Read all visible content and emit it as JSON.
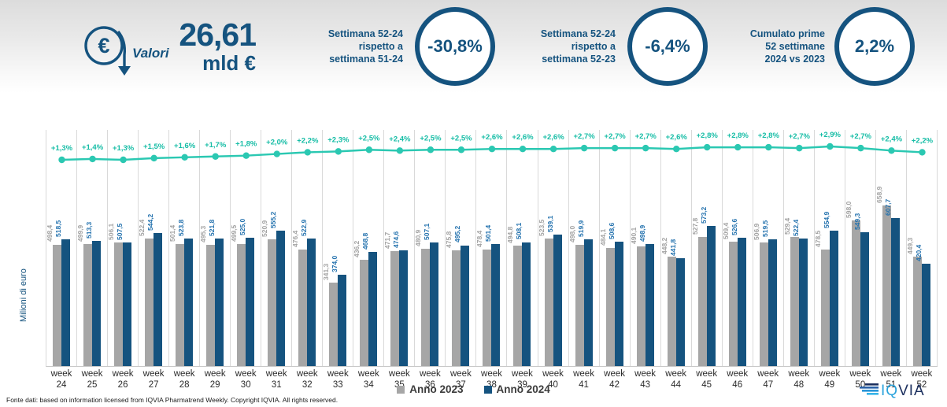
{
  "header": {
    "valori_label": "Valori",
    "total_value": "26,61",
    "total_unit": "mld €",
    "accent_color": "#15537f",
    "kpis": [
      {
        "lines": [
          "Settimana 52-24",
          "rispetto a",
          "settimana 51-24"
        ],
        "value": "-30,8%"
      },
      {
        "lines": [
          "Settimana 52-24",
          "rispetto a",
          "settimana 52-23"
        ],
        "value": "-6,4%"
      },
      {
        "lines": [
          "Cumulato prime",
          "52 settimane",
          "2024 vs 2023"
        ],
        "value": "2,2%"
      }
    ]
  },
  "chart_data": {
    "type": "bar",
    "ylabel": "Milioni di euro",
    "x_prefix": "week",
    "categories": [
      "24",
      "25",
      "26",
      "27",
      "28",
      "29",
      "30",
      "31",
      "32",
      "33",
      "34",
      "35",
      "36",
      "37",
      "38",
      "39",
      "40",
      "41",
      "42",
      "43",
      "44",
      "45",
      "46",
      "47",
      "48",
      "49",
      "50",
      "51",
      "52"
    ],
    "series": [
      {
        "name": "Anno 2023",
        "color": "#a6a6a6",
        "label_color": "#a3a3a3",
        "values": [
          498.4,
          499.9,
          506.1,
          522.4,
          501.4,
          495.3,
          499.5,
          520.9,
          476.4,
          341.3,
          436.2,
          471.7,
          480.9,
          475.8,
          478.4,
          494.8,
          523.5,
          498.0,
          484.1,
          490.1,
          448.2,
          527.8,
          509.4,
          506.9,
          529.4,
          478.5,
          598.0,
          658.9,
          449.3
        ]
      },
      {
        "name": "Anno 2024",
        "color": "#15537f",
        "label_color": "#2472ae",
        "values": [
          518.5,
          513.3,
          507.5,
          544.2,
          523.8,
          521.8,
          525.0,
          555.2,
          522.9,
          374.0,
          468.8,
          474.6,
          507.1,
          495.2,
          501.4,
          508.1,
          539.1,
          519.9,
          508.6,
          498.9,
          441.8,
          573.2,
          526.6,
          519.5,
          522.4,
          554.9,
          549.3,
          607.7,
          420.4
        ]
      }
    ],
    "line_overlay": {
      "name": "Variazione % cumulata",
      "color": "#2bc8b2",
      "label_color": "#16bda6",
      "values_pct": [
        1.3,
        1.4,
        1.3,
        1.5,
        1.6,
        1.7,
        1.8,
        2.0,
        2.2,
        2.3,
        2.5,
        2.4,
        2.5,
        2.5,
        2.6,
        2.6,
        2.6,
        2.7,
        2.7,
        2.7,
        2.6,
        2.8,
        2.8,
        2.8,
        2.7,
        2.9,
        2.7,
        2.4,
        2.2
      ],
      "labels": [
        "+1,3%",
        "+1,4%",
        "+1,3%",
        "+1,5%",
        "+1,6%",
        "+1,7%",
        "+1,8%",
        "+2,0%",
        "+2,2%",
        "+2,3%",
        "+2,5%",
        "+2,4%",
        "+2,5%",
        "+2,5%",
        "+2,6%",
        "+2,6%",
        "+2,6%",
        "+2,7%",
        "+2,7%",
        "+2,7%",
        "+2,6%",
        "+2,8%",
        "+2,8%",
        "+2,8%",
        "+2,7%",
        "+2,9%",
        "+2,7%",
        "+2,4%",
        "+2,2%"
      ]
    },
    "grid": "vertical",
    "legend_position": "bottom",
    "ylim": [
      0,
      970
    ]
  },
  "legend": [
    {
      "label": "Anno 2023",
      "color": "#a6a6a6"
    },
    {
      "label": "Anno 2024",
      "color": "#15537f"
    }
  ],
  "footer": {
    "source": "Fonte dati: based on information licensed from IQVIA Pharmatrend Weekly. Copyright IQVIA. All rights reserved.",
    "logo_text_light": "IQ",
    "logo_text_dark": "VIA"
  }
}
